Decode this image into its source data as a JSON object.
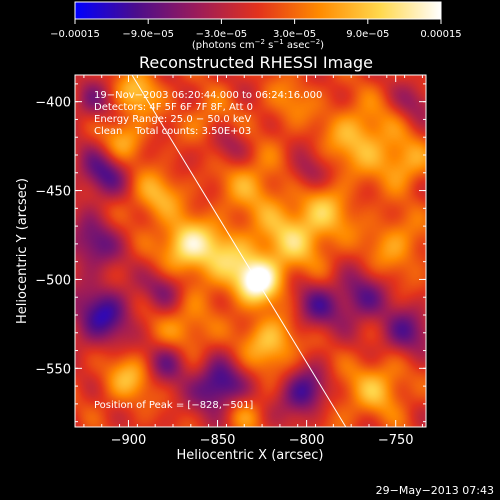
{
  "chart_data": {
    "type": "heatmap",
    "title": "Reconstructed RHESSI Image",
    "xlabel": "Heliocentric X (arcsec)",
    "ylabel": "Heliocentric Y (arcsec)",
    "xlim": [
      -930,
      -733
    ],
    "ylim": [
      -583,
      -385
    ],
    "x_ticks": [
      -900,
      -850,
      -800,
      -750
    ],
    "y_ticks": [
      -400,
      -450,
      -500,
      -550
    ],
    "x_tick_labels": [
      "−900",
      "−850",
      "−800",
      "−750"
    ],
    "y_tick_labels": [
      "−400",
      "−450",
      "−500",
      "−550"
    ],
    "colorbar": {
      "min": -0.00015,
      "max": 0.00015,
      "ticks": [
        -0.00015,
        -9e-05,
        -3e-05,
        3e-05,
        9e-05,
        0.00015
      ],
      "tick_labels": [
        "−0.00015",
        "−9.0e−05",
        "−3.0e−05",
        "3.0e−05",
        "9.0e−05",
        "0.00015"
      ],
      "units_parts": [
        "(photons cm",
        "−2",
        " s",
        "−1",
        " asec",
        "−2",
        ")"
      ],
      "colors": [
        "#0000ff",
        "#4b0d8c",
        "#9b1b5a",
        "#e2321c",
        "#ff8a00",
        "#ffd84d",
        "#ffffff"
      ]
    },
    "info_lines": [
      "19−Nov−2003 06:20:44.000 to 06:24:16.000",
      "Detectors: 4F 5F 6F 7F 8F, Att 0",
      "Energy Range: 25.0 − 50.0 keV",
      "Clean    Total counts: 3.50E+03"
    ],
    "peak": {
      "label": "Position of Peak = [−828,−501]",
      "x": -828,
      "y": -501
    },
    "sources": [
      {
        "x": -828,
        "y": -501,
        "a": 1.0,
        "s": 9
      },
      {
        "x": -848,
        "y": -488,
        "a": 0.55,
        "s": 12
      },
      {
        "x": -868,
        "y": -480,
        "a": 0.75,
        "s": 10
      },
      {
        "x": -810,
        "y": -478,
        "a": 0.55,
        "s": 14
      },
      {
        "x": -790,
        "y": -462,
        "a": 0.45,
        "s": 12
      },
      {
        "x": -885,
        "y": -453,
        "a": 0.5,
        "s": 10
      },
      {
        "x": -903,
        "y": -422,
        "a": 0.45,
        "s": 9
      },
      {
        "x": -832,
        "y": -445,
        "a": 0.4,
        "s": 14
      },
      {
        "x": -820,
        "y": -535,
        "a": 0.6,
        "s": 11
      },
      {
        "x": -870,
        "y": -530,
        "a": 0.45,
        "s": 12
      },
      {
        "x": -900,
        "y": -555,
        "a": 0.5,
        "s": 10
      },
      {
        "x": -770,
        "y": -420,
        "a": 0.55,
        "s": 14
      },
      {
        "x": -745,
        "y": -435,
        "a": 0.45,
        "s": 10
      },
      {
        "x": -750,
        "y": -480,
        "a": 0.4,
        "s": 12
      },
      {
        "x": -760,
        "y": -560,
        "a": 0.5,
        "s": 12
      },
      {
        "x": -790,
        "y": -570,
        "a": 0.35,
        "s": 10
      },
      {
        "x": -855,
        "y": -410,
        "a": 0.3,
        "s": 10
      },
      {
        "x": -895,
        "y": -395,
        "a": 0.55,
        "s": 9
      },
      {
        "x": -810,
        "y": -400,
        "a": 0.3,
        "s": 10
      },
      {
        "x": -920,
        "y": -480,
        "a": -0.55,
        "s": 10
      },
      {
        "x": -915,
        "y": -520,
        "a": -0.7,
        "s": 12
      },
      {
        "x": -880,
        "y": -505,
        "a": -0.4,
        "s": 8
      },
      {
        "x": -795,
        "y": -515,
        "a": -0.5,
        "s": 10
      },
      {
        "x": -800,
        "y": -565,
        "a": -0.85,
        "s": 10
      },
      {
        "x": -850,
        "y": -560,
        "a": -0.8,
        "s": 10
      },
      {
        "x": -878,
        "y": -545,
        "a": -0.6,
        "s": 9
      },
      {
        "x": -770,
        "y": -510,
        "a": -0.55,
        "s": 10
      },
      {
        "x": -915,
        "y": -440,
        "a": -0.6,
        "s": 10
      },
      {
        "x": -745,
        "y": -530,
        "a": -0.55,
        "s": 10
      },
      {
        "x": -845,
        "y": -425,
        "a": -0.35,
        "s": 9
      },
      {
        "x": -800,
        "y": -440,
        "a": -0.4,
        "s": 8
      },
      {
        "x": -740,
        "y": -400,
        "a": -0.3,
        "s": 8
      },
      {
        "x": -920,
        "y": -400,
        "a": -0.4,
        "s": 8
      },
      {
        "x": -835,
        "y": -575,
        "a": 0.3,
        "s": 8
      }
    ],
    "limb_line": [
      [
        -898,
        -385
      ],
      [
        -778,
        -583
      ]
    ]
  },
  "footer": {
    "timestamp": "29−May−2013 07:43"
  }
}
